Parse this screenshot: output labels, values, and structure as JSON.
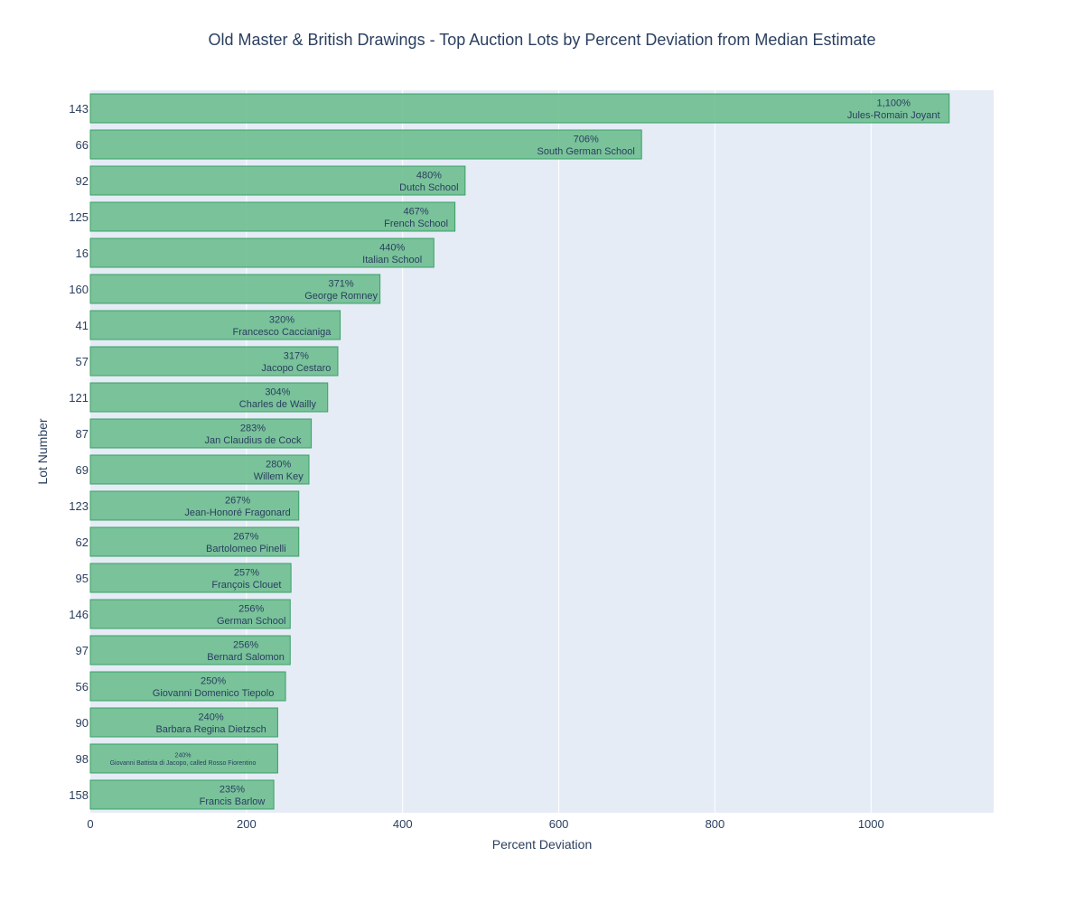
{
  "chart_data": {
    "type": "bar",
    "orientation": "horizontal",
    "title": "Old Master & British Drawings - Top Auction Lots by Percent Deviation from Median Estimate",
    "xlabel": "Percent Deviation",
    "ylabel": "Lot Number",
    "xlim": [
      0,
      1157
    ],
    "xticks": [
      0,
      200,
      400,
      600,
      800,
      1000
    ],
    "grid": true,
    "legend": "none",
    "colors": {
      "bar_fill": "#66bb8a",
      "bar_stroke": "#3aa065",
      "plot_bg": "#e5ecf6",
      "grid": "#ffffff",
      "text": "#2a3f5f"
    },
    "bars": [
      {
        "lot": "143",
        "value": 1100,
        "value_label": "1,100%",
        "name": "Jules-Romain Joyant"
      },
      {
        "lot": "66",
        "value": 706,
        "value_label": "706%",
        "name": "South German School"
      },
      {
        "lot": "92",
        "value": 480,
        "value_label": "480%",
        "name": "Dutch School"
      },
      {
        "lot": "125",
        "value": 467,
        "value_label": "467%",
        "name": "French School"
      },
      {
        "lot": "16",
        "value": 440,
        "value_label": "440%",
        "name": "Italian School"
      },
      {
        "lot": "160",
        "value": 371,
        "value_label": "371%",
        "name": "George Romney"
      },
      {
        "lot": "41",
        "value": 320,
        "value_label": "320%",
        "name": "Francesco Caccianiga"
      },
      {
        "lot": "57",
        "value": 317,
        "value_label": "317%",
        "name": "Jacopo Cestaro"
      },
      {
        "lot": "121",
        "value": 304,
        "value_label": "304%",
        "name": "Charles de Wailly"
      },
      {
        "lot": "87",
        "value": 283,
        "value_label": "283%",
        "name": "Jan Claudius de Cock"
      },
      {
        "lot": "69",
        "value": 280,
        "value_label": "280%",
        "name": "Willem Key"
      },
      {
        "lot": "123",
        "value": 267,
        "value_label": "267%",
        "name": "Jean-Honoré Fragonard"
      },
      {
        "lot": "62",
        "value": 267,
        "value_label": "267%",
        "name": "Bartolomeo Pinelli"
      },
      {
        "lot": "95",
        "value": 257,
        "value_label": "257%",
        "name": "François Clouet"
      },
      {
        "lot": "146",
        "value": 256,
        "value_label": "256%",
        "name": "German School"
      },
      {
        "lot": "97",
        "value": 256,
        "value_label": "256%",
        "name": "Bernard Salomon"
      },
      {
        "lot": "56",
        "value": 250,
        "value_label": "250%",
        "name": "Giovanni Domenico Tiepolo"
      },
      {
        "lot": "90",
        "value": 240,
        "value_label": "240%",
        "name": "Barbara Regina Dietzsch"
      },
      {
        "lot": "98",
        "value": 240,
        "value_label": "240%",
        "name": "Giovanni Battista di Jacopo, called Rosso Fiorentino"
      },
      {
        "lot": "158",
        "value": 235,
        "value_label": "235%",
        "name": "Francis Barlow"
      }
    ]
  }
}
